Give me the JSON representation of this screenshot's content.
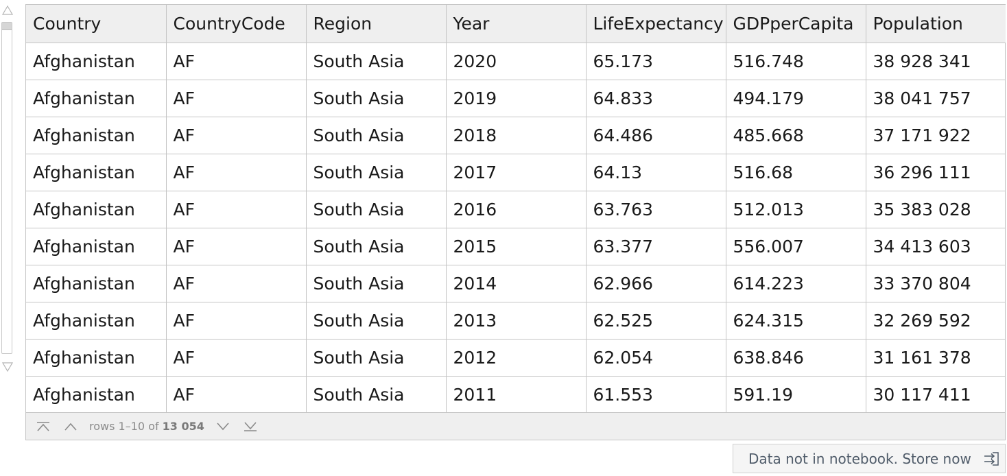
{
  "table": {
    "columns": [
      "Country",
      "CountryCode",
      "Region",
      "Year",
      "LifeExpectancy",
      "GDPperCapita",
      "Population"
    ],
    "rows": [
      [
        "Afghanistan",
        "AF",
        "South Asia",
        "2020",
        "65.173",
        "516.748",
        "38 928 341"
      ],
      [
        "Afghanistan",
        "AF",
        "South Asia",
        "2019",
        "64.833",
        "494.179",
        "38 041 757"
      ],
      [
        "Afghanistan",
        "AF",
        "South Asia",
        "2018",
        "64.486",
        "485.668",
        "37 171 922"
      ],
      [
        "Afghanistan",
        "AF",
        "South Asia",
        "2017",
        "64.13",
        "516.68",
        "36 296 111"
      ],
      [
        "Afghanistan",
        "AF",
        "South Asia",
        "2016",
        "63.763",
        "512.013",
        "35 383 028"
      ],
      [
        "Afghanistan",
        "AF",
        "South Asia",
        "2015",
        "63.377",
        "556.007",
        "34 413 603"
      ],
      [
        "Afghanistan",
        "AF",
        "South Asia",
        "2014",
        "62.966",
        "614.223",
        "33 370 804"
      ],
      [
        "Afghanistan",
        "AF",
        "South Asia",
        "2013",
        "62.525",
        "624.315",
        "32 269 592"
      ],
      [
        "Afghanistan",
        "AF",
        "South Asia",
        "2012",
        "62.054",
        "638.846",
        "31 161 378"
      ],
      [
        "Afghanistan",
        "AF",
        "South Asia",
        "2011",
        "61.553",
        "591.19",
        "30 117 411"
      ]
    ]
  },
  "pager": {
    "rows_label": "rows 1–10 of",
    "rows_total": "13 054",
    "icons": [
      "first-page-icon",
      "previous-page-icon",
      "next-page-icon",
      "last-page-icon"
    ]
  },
  "store": {
    "label": "Data not in notebook. Store now",
    "icon": "store-arrow-icon"
  },
  "colors": {
    "header_bg": "#efefef",
    "grid_line": "#c4c4c4",
    "text": "#1a1a1a",
    "pager_text": "#8a8a8a",
    "store_text": "#4f5b69"
  }
}
